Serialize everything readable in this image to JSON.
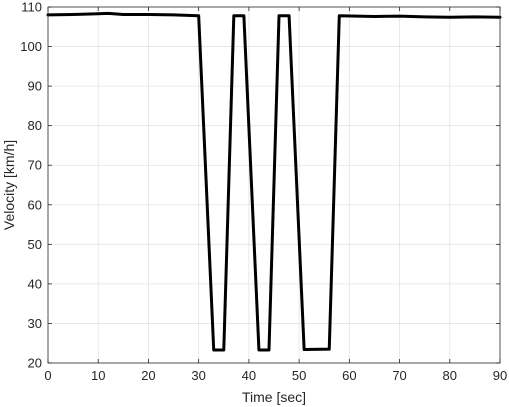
{
  "chart_data": {
    "type": "line",
    "xlabel": "Time [sec]",
    "ylabel": "Velocity [km/h]",
    "xlim": [
      0,
      90
    ],
    "ylim": [
      20,
      110
    ],
    "xticks": [
      0,
      10,
      20,
      30,
      40,
      50,
      60,
      70,
      80,
      90
    ],
    "yticks": [
      20,
      30,
      40,
      50,
      60,
      70,
      80,
      90,
      100,
      110
    ],
    "grid": true,
    "line_color": "#000000",
    "series": [
      {
        "x": [
          0,
          5,
          10,
          12,
          15,
          20,
          25,
          30,
          33,
          35,
          37,
          39,
          42,
          44,
          46,
          48,
          51,
          56,
          58,
          65,
          70,
          75,
          80,
          85,
          90
        ],
        "y": [
          108,
          108.1,
          108.3,
          108.4,
          108.1,
          108.1,
          108,
          107.8,
          23.3,
          23.3,
          107.8,
          107.8,
          23.3,
          23.3,
          107.8,
          107.8,
          23.4,
          23.5,
          107.8,
          107.6,
          107.7,
          107.5,
          107.4,
          107.5,
          107.4
        ]
      }
    ]
  }
}
